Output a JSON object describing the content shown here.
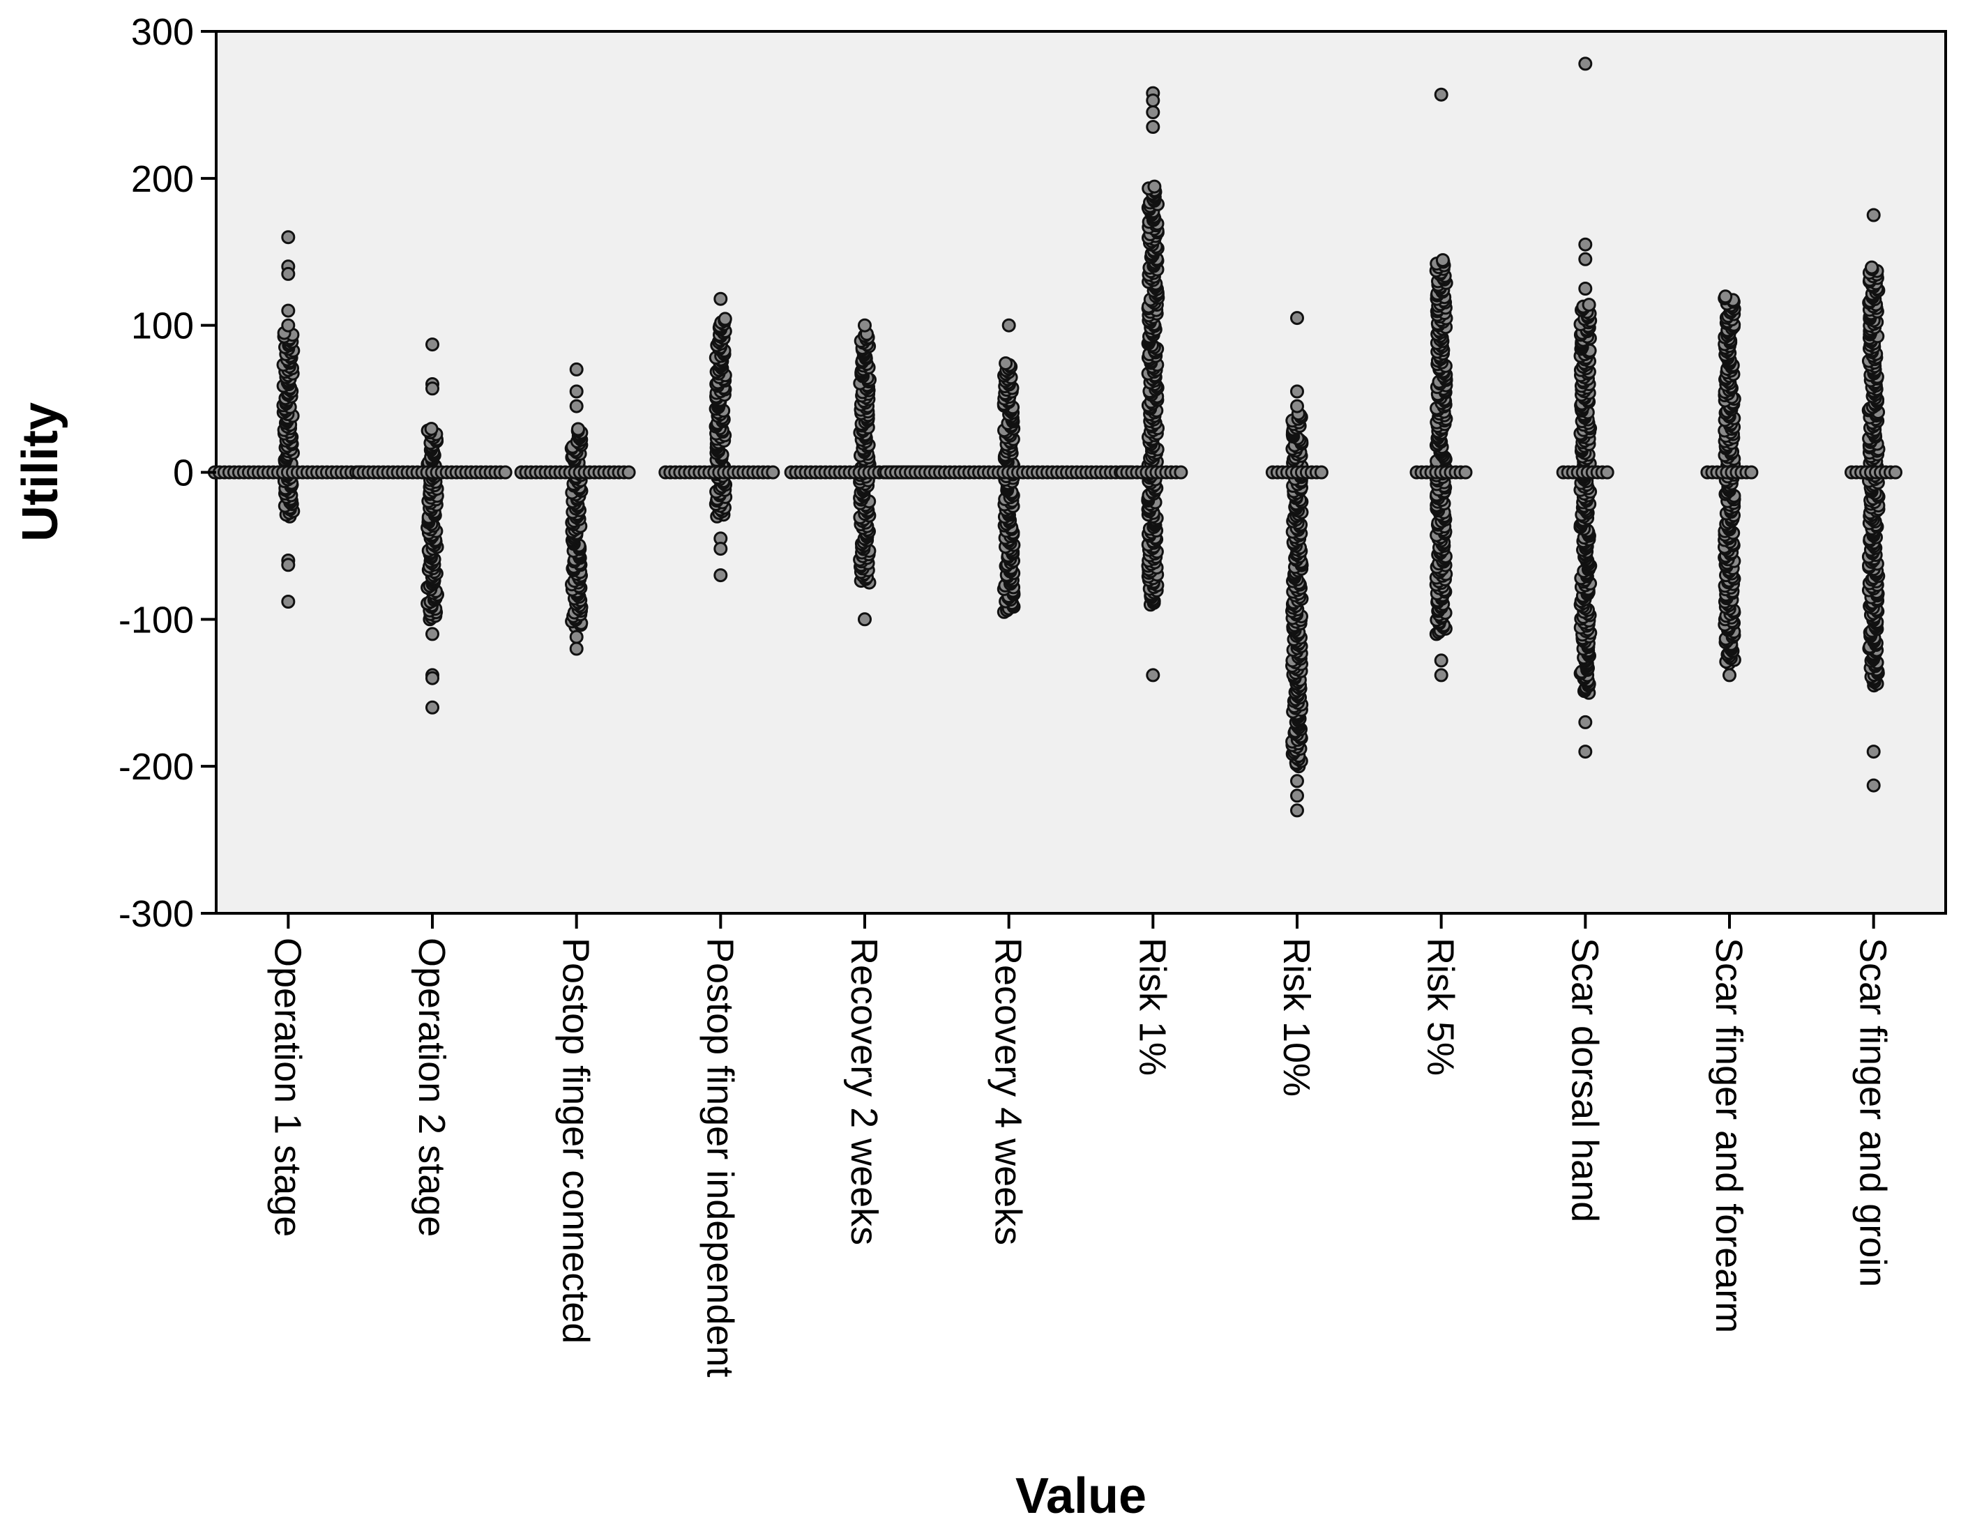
{
  "chart_data": {
    "type": "scatter",
    "xlabel": "Value",
    "ylabel": "Utility",
    "ylim": [
      -300,
      300
    ],
    "yticks": [
      300,
      200,
      100,
      0,
      -100,
      -200,
      -300
    ],
    "grid": false,
    "categories": [
      "Operation 1 stage",
      "Operation 2 stage",
      "Postop finger connected",
      "Postop finger independent",
      "Recovery 2 weeks",
      "Recovery 4 weeks",
      "Risk 1%",
      "Risk 10%",
      "Risk 5%",
      "Scar dorsal hand",
      "Scar finger and forearm",
      "Scar finger and groin"
    ],
    "series": [
      {
        "category": "Operation 1 stage",
        "spread": 60,
        "range": [
          -30,
          95
        ],
        "outliers": [
          160,
          140,
          135,
          110,
          100,
          -60,
          -63,
          -88
        ]
      },
      {
        "category": "Operation 2 stage",
        "spread": 60,
        "range": [
          -100,
          30
        ],
        "outliers": [
          87,
          60,
          57,
          -110,
          -138,
          -140,
          -160
        ]
      },
      {
        "category": "Postop finger connected",
        "spread": 45,
        "range": [
          -105,
          30
        ],
        "outliers": [
          70,
          55,
          45,
          -112,
          -120
        ]
      },
      {
        "category": "Postop finger independent",
        "spread": 45,
        "range": [
          -30,
          105
        ],
        "outliers": [
          118,
          -45,
          -52,
          -70
        ]
      },
      {
        "category": "Recovery 2 weeks",
        "spread": 60,
        "range": [
          -75,
          95
        ],
        "outliers": [
          100,
          -100
        ]
      },
      {
        "category": "Recovery 4 weeks",
        "spread": 100,
        "range": [
          -95,
          75
        ],
        "outliers": [
          100
        ]
      },
      {
        "category": "Risk 1%",
        "spread": 25,
        "range": [
          -90,
          195
        ],
        "outliers": [
          258,
          253,
          245,
          235,
          -138
        ]
      },
      {
        "category": "Risk 10%",
        "spread": 20,
        "range": [
          -200,
          40
        ],
        "outliers": [
          105,
          55,
          45,
          -210,
          -220,
          -230
        ]
      },
      {
        "category": "Risk 5%",
        "spread": 20,
        "range": [
          -110,
          145
        ],
        "outliers": [
          257,
          -128,
          -138
        ]
      },
      {
        "category": "Scar dorsal hand",
        "spread": 18,
        "range": [
          -150,
          115
        ],
        "outliers": [
          278,
          155,
          145,
          125,
          -170,
          -190
        ]
      },
      {
        "category": "Scar finger and forearm",
        "spread": 18,
        "range": [
          -130,
          120
        ],
        "outliers": [
          -138
        ]
      },
      {
        "category": "Scar finger and groin",
        "spread": 18,
        "range": [
          -145,
          140
        ],
        "outliers": [
          175,
          -190,
          -213
        ]
      }
    ]
  }
}
